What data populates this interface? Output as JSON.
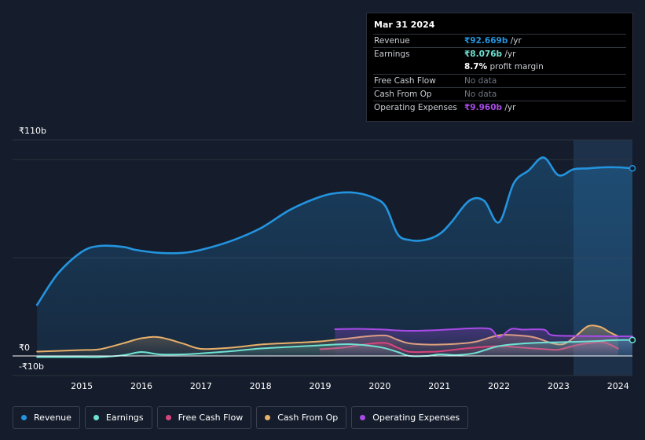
{
  "tooltip": {
    "date": "Mar 31 2024",
    "rows": {
      "revenue": {
        "label": "Revenue",
        "value": "₹92.669b",
        "unit": "/yr"
      },
      "earnings": {
        "label": "Earnings",
        "value": "₹8.076b",
        "unit": "/yr"
      },
      "margin": {
        "value": "8.7%",
        "unit": "profit margin"
      },
      "fcf": {
        "label": "Free Cash Flow",
        "value": "No data"
      },
      "cfo": {
        "label": "Cash From Op",
        "value": "No data"
      },
      "opex": {
        "label": "Operating Expenses",
        "value": "₹9.960b",
        "unit": "/yr"
      }
    }
  },
  "legend": {
    "revenue": "Revenue",
    "earnings": "Earnings",
    "fcf": "Free Cash Flow",
    "cfo": "Cash From Op",
    "opex": "Operating Expenses"
  },
  "colors": {
    "revenue": "#2394df",
    "earnings": "#6ee2d2",
    "fcf": "#d7457b",
    "cfo": "#e8b06a",
    "opex": "#a94be8",
    "background": "#151c2b"
  },
  "chart_data": {
    "type": "area",
    "title": "",
    "xlabel": "",
    "ylabel": "",
    "ylim": [
      -10,
      110
    ],
    "y_tick_labels": [
      "₹110b",
      "₹0",
      "-₹10b"
    ],
    "y_ticks": [
      110,
      0,
      -10
    ],
    "x_tick_labels": [
      "2015",
      "2016",
      "2017",
      "2018",
      "2019",
      "2020",
      "2021",
      "2022",
      "2023",
      "2024"
    ],
    "x_ticks": [
      2015,
      2016,
      2017,
      2018,
      2019,
      2020,
      2021,
      2022,
      2023,
      2024
    ],
    "xlim": [
      2014.26,
      2024.24
    ],
    "highlight_from": 2023.25,
    "series": [
      {
        "name": "Revenue",
        "key": "revenue",
        "x": [
          2014.25,
          2014.6,
          2015.0,
          2015.3,
          2015.7,
          2015.9,
          2016.3,
          2016.7,
          2017.0,
          2017.5,
          2018.0,
          2018.5,
          2019.0,
          2019.3,
          2019.6,
          2019.9,
          2020.1,
          2020.3,
          2020.5,
          2020.75,
          2021.0,
          2021.2,
          2021.5,
          2021.75,
          2022.0,
          2022.25,
          2022.5,
          2022.75,
          2023.0,
          2023.25,
          2023.5,
          2023.75,
          2024.0,
          2024.24
        ],
        "values": [
          26,
          42,
          53,
          56,
          55.5,
          54,
          52.5,
          52.5,
          54,
          58.5,
          65,
          74.5,
          81,
          83,
          83,
          80.5,
          76,
          62,
          59,
          59,
          62,
          68,
          79,
          79,
          68,
          88,
          94.5,
          101,
          92,
          95,
          95.5,
          96,
          96,
          95.5
        ]
      },
      {
        "name": "Earnings",
        "key": "earnings",
        "x": [
          2014.25,
          2015.0,
          2015.3,
          2015.7,
          2016.0,
          2016.3,
          2016.7,
          2017.0,
          2017.5,
          2018.0,
          2018.5,
          2019.0,
          2019.5,
          2020.0,
          2020.3,
          2020.5,
          2020.8,
          2021.0,
          2021.3,
          2021.6,
          2022.0,
          2022.5,
          2023.0,
          2023.5,
          2024.0,
          2024.24
        ],
        "values": [
          -0.6,
          -0.6,
          -0.6,
          0.4,
          2,
          0.8,
          0.8,
          1.3,
          2.4,
          3.8,
          4.6,
          5.4,
          6,
          4.5,
          2,
          0,
          0,
          0.8,
          0.5,
          1.5,
          5,
          6.5,
          7,
          7.4,
          8.1,
          8.1
        ]
      },
      {
        "name": "Free Cash Flow",
        "key": "fcf",
        "x": [
          2019.0,
          2019.4,
          2019.8,
          2020.1,
          2020.3,
          2020.5,
          2020.8,
          2021.0,
          2021.5,
          2022.0,
          2022.4,
          2022.8,
          2023.0,
          2023.3,
          2023.5,
          2023.75,
          2024.0
        ],
        "values": [
          3.4,
          4.3,
          6.1,
          6.6,
          4.2,
          2.1,
          2.1,
          2.3,
          4,
          5,
          4.2,
          3.4,
          3.2,
          5.5,
          6.5,
          7,
          3.8
        ]
      },
      {
        "name": "Cash From Op",
        "key": "cfo",
        "x": [
          2014.25,
          2015.0,
          2015.3,
          2015.7,
          2016.0,
          2016.3,
          2016.7,
          2017.0,
          2017.5,
          2018.0,
          2018.5,
          2019.0,
          2019.4,
          2019.8,
          2020.1,
          2020.3,
          2020.5,
          2020.8,
          2021.0,
          2021.3,
          2021.6,
          2022.0,
          2022.3,
          2022.6,
          2022.9,
          2023.1,
          2023.3,
          2023.5,
          2023.7,
          2023.85,
          2024.0
        ],
        "values": [
          2.2,
          3,
          3.4,
          6.5,
          9,
          9.5,
          6.3,
          3.6,
          4.2,
          5.8,
          6.6,
          7.4,
          8.7,
          10,
          10.4,
          8.2,
          6.4,
          5.8,
          5.8,
          6.2,
          7.2,
          10.5,
          10.5,
          9.4,
          6.4,
          6.2,
          10.4,
          15.2,
          14.8,
          12.2,
          10
        ]
      },
      {
        "name": "Operating Expenses",
        "key": "opex",
        "x": [
          2019.25,
          2019.6,
          2020.0,
          2020.3,
          2020.6,
          2021.0,
          2021.3,
          2021.5,
          2021.85,
          2022.0,
          2022.2,
          2022.4,
          2022.75,
          2022.85,
          2023.0,
          2023.5,
          2024.0,
          2024.24
        ],
        "values": [
          13.6,
          13.8,
          13.5,
          13,
          12.8,
          13.2,
          13.7,
          14,
          13.8,
          9.5,
          13.7,
          13.4,
          13.4,
          11,
          10.3,
          10.1,
          9.96,
          9.96
        ]
      }
    ]
  }
}
